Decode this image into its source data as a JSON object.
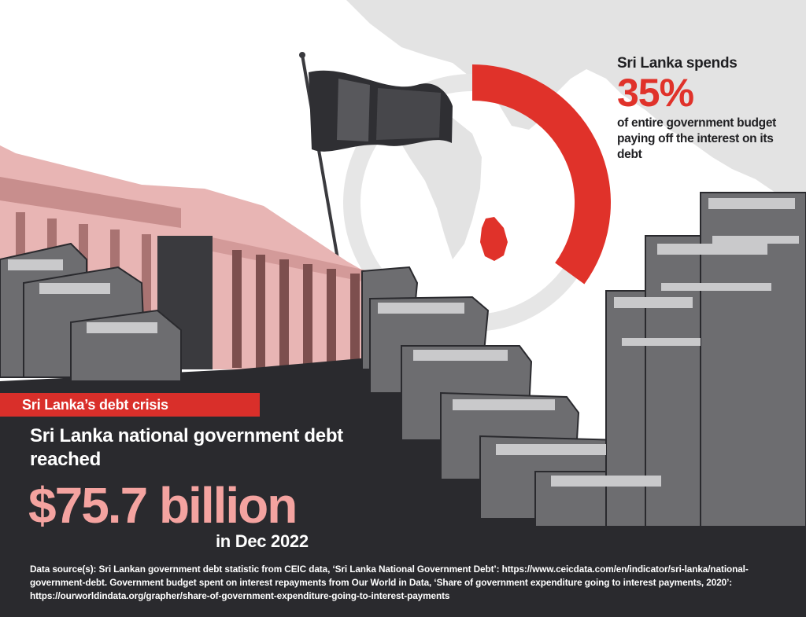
{
  "colors": {
    "accent_red": "#d92f2a",
    "accent_pink": "#f4a3a0",
    "dark_bg": "#2a2a2e",
    "ring_grey": "#e6e6e6",
    "map_grey": "#e3e3e3"
  },
  "interest_share": {
    "lead": "Sri Lanka spends",
    "value": "35%",
    "fraction": 0.35,
    "description": "of entire government budget paying off the interest on its debt"
  },
  "section_tag": "Sri Lanka’s debt crisis",
  "debt": {
    "headline": "Sri Lanka national government debt reached",
    "amount": "$75.7 billion",
    "date": "in Dec 2022"
  },
  "source_text": "Data source(s): Sri Lankan government debt statistic from CEIC data, ‘Sri Lanka National Government Debt’: https://www.ceicdata.com/en/indicator/sri-lanka/national-government-debt. Government budget spent on interest repayments from Our World in Data, ‘Share of government expenditure going to interest payments, 2020’: https://ourworldindata.org/grapher/share-of-government-expenditure-going-to-interest-payments",
  "illustration": {
    "icons": [
      "sri-lanka-flag-icon",
      "parliament-building-icon",
      "money-stack-icon",
      "world-map-icon"
    ]
  }
}
